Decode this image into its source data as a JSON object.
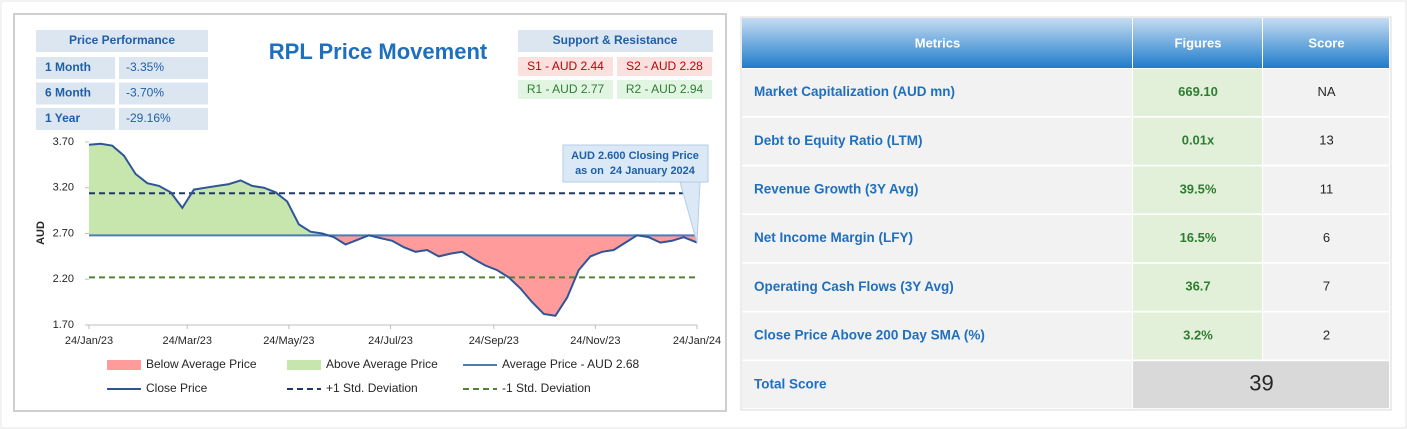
{
  "chart_data": {
    "type": "line",
    "title": "RPL Price Movement",
    "y_label": "AUD",
    "x": [
      "2023-01-24",
      "2023-01-31",
      "2023-02-07",
      "2023-02-14",
      "2023-02-21",
      "2023-02-28",
      "2023-03-07",
      "2023-03-14",
      "2023-03-21",
      "2023-03-28",
      "2023-04-04",
      "2023-04-11",
      "2023-04-18",
      "2023-04-25",
      "2023-05-02",
      "2023-05-09",
      "2023-05-16",
      "2023-05-23",
      "2023-05-30",
      "2023-06-06",
      "2023-06-13",
      "2023-06-20",
      "2023-06-27",
      "2023-07-04",
      "2023-07-11",
      "2023-07-18",
      "2023-07-25",
      "2023-08-01",
      "2023-08-08",
      "2023-08-15",
      "2023-08-22",
      "2023-08-29",
      "2023-09-05",
      "2023-09-12",
      "2023-09-19",
      "2023-09-26",
      "2023-10-03",
      "2023-10-10",
      "2023-10-17",
      "2023-10-24",
      "2023-10-31",
      "2023-11-07",
      "2023-11-14",
      "2023-11-21",
      "2023-11-28",
      "2023-12-05",
      "2023-12-12",
      "2023-12-19",
      "2023-12-26",
      "2024-01-02",
      "2024-01-09",
      "2024-01-16",
      "2024-01-24"
    ],
    "series": [
      {
        "name": "Close Price",
        "color": "#2f5597",
        "values": [
          3.67,
          3.68,
          3.66,
          3.55,
          3.35,
          3.25,
          3.22,
          3.15,
          2.98,
          3.18,
          3.2,
          3.22,
          3.24,
          3.28,
          3.22,
          3.2,
          3.15,
          3.05,
          2.8,
          2.72,
          2.7,
          2.66,
          2.58,
          2.63,
          2.68,
          2.65,
          2.62,
          2.55,
          2.5,
          2.52,
          2.45,
          2.48,
          2.5,
          2.42,
          2.35,
          2.3,
          2.22,
          2.1,
          1.95,
          1.82,
          1.8,
          2.0,
          2.3,
          2.45,
          2.5,
          2.52,
          2.6,
          2.68,
          2.66,
          2.6,
          2.62,
          2.66,
          2.6
        ]
      }
    ],
    "reference_lines": [
      {
        "name": "Average Price - AUD 2.68",
        "value": 2.68,
        "color": "#4a7ebb",
        "dashed": false
      },
      {
        "name": "+1 Std. Deviation",
        "value": 3.14,
        "color": "#1f3864",
        "dashed": true
      },
      {
        "name": "-1 Std. Deviation",
        "value": 2.22,
        "color": "#548235",
        "dashed": true
      }
    ],
    "fills": [
      {
        "name": "Below Average Price",
        "color": "#ff9b9b"
      },
      {
        "name": "Above Average Price",
        "color": "#c6e6ad"
      }
    ],
    "xlim": [
      "2023-01-24",
      "2024-01-24"
    ],
    "xticks": [
      {
        "value": "2023-01-24",
        "label": "24/Jan/23"
      },
      {
        "value": "2023-03-24",
        "label": "24/Mar/23"
      },
      {
        "value": "2023-05-24",
        "label": "24/May/23"
      },
      {
        "value": "2023-07-24",
        "label": "24/Jul/23"
      },
      {
        "value": "2023-09-24",
        "label": "24/Sep/23"
      },
      {
        "value": "2023-11-24",
        "label": "24/Nov/23"
      },
      {
        "value": "2024-01-24",
        "label": "24/Jan/24"
      }
    ],
    "ylim": [
      1.7,
      3.7
    ],
    "yticks": [
      {
        "value": 1.7,
        "label": "1.70"
      },
      {
        "value": 2.2,
        "label": "2.20"
      },
      {
        "value": 2.7,
        "label": "2.70"
      },
      {
        "value": 3.2,
        "label": "3.20"
      },
      {
        "value": 3.7,
        "label": "3.70"
      }
    ],
    "annotation": [
      "AUD 2.600 Closing Price",
      "as on  24 January 2024"
    ],
    "price_performance": {
      "title": "Price Performance",
      "rows": [
        [
          "1 Month",
          "-3.35%"
        ],
        [
          "6 Month",
          "-3.70%"
        ],
        [
          "1 Year",
          "-29.16%"
        ]
      ]
    },
    "support_resistance": {
      "title": "Support & Resistance",
      "support": [
        "S1 - AUD 2.44",
        "S2 - AUD 2.28"
      ],
      "resistance": [
        "R1 - AUD 2.77",
        "R2 - AUD 2.94"
      ]
    }
  },
  "table": {
    "headers": [
      "Metrics",
      "Figures",
      "Score"
    ],
    "rows": [
      [
        "Market Capitalization (AUD mn)",
        "669.10",
        "NA"
      ],
      [
        "Debt to Equity Ratio (LTM)",
        "0.01x",
        13
      ],
      [
        "Revenue Growth (3Y Avg)",
        "39.5%",
        11
      ],
      [
        "Net Income Margin (LFY)",
        "16.5%",
        6
      ],
      [
        "Operating Cash Flows (3Y Avg)",
        "36.7",
        7
      ],
      [
        "Close Price Above 200 Day SMA (%)",
        "3.2%",
        2
      ]
    ],
    "total": [
      "Total Score",
      39
    ]
  }
}
